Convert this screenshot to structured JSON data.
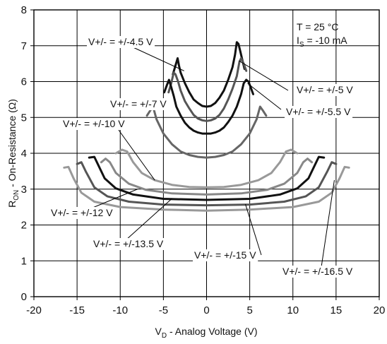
{
  "chart_data": {
    "type": "line",
    "title": "",
    "xlabel": "V",
    "xlabel_sub": "D",
    "xlabel_suffix": " - Analog Voltage (V)",
    "ylabel": "R",
    "ylabel_sub": "ON",
    "ylabel_suffix": " - On-Resistance (Ω)",
    "xlim": [
      -20,
      20
    ],
    "ylim": [
      0,
      8
    ],
    "x_ticks": [
      "-20",
      "-15",
      "-10",
      "-5",
      "0",
      "5",
      "10",
      "15",
      "20"
    ],
    "y_ticks": [
      "0",
      "1",
      "2",
      "3",
      "4",
      "5",
      "6",
      "7",
      "8"
    ],
    "grid": true,
    "conditions": {
      "temp": "T = 25 °C",
      "is_main": "I",
      "is_sub": "S",
      "is_value": " = -10 mA"
    },
    "series": [
      {
        "name": "V+/- = +/-4.5 V",
        "color": "#111111",
        "x": [
          -3.9,
          -3.6,
          -3.35,
          -3.2,
          -3.0,
          -2.5,
          -2.0,
          -1.5,
          -1.0,
          -0.5,
          0,
          0.5,
          1.0,
          1.5,
          2.0,
          2.5,
          3.0,
          3.3,
          3.5,
          3.7,
          3.9,
          4.15,
          4.4
        ],
        "y": [
          6.2,
          6.45,
          6.65,
          6.45,
          6.25,
          5.95,
          5.7,
          5.5,
          5.4,
          5.32,
          5.3,
          5.32,
          5.4,
          5.55,
          5.75,
          6.05,
          6.4,
          6.75,
          7.1,
          7.05,
          6.85,
          6.6,
          6.35
        ]
      },
      {
        "name": "V+/- = +/-5 V",
        "color": "#555555",
        "x": [
          -4.4,
          -4.1,
          -3.8,
          -3.6,
          -3.3,
          -3.0,
          -2.5,
          -2.0,
          -1.5,
          -1.0,
          -0.5,
          0,
          0.5,
          1.0,
          1.5,
          2.0,
          2.5,
          3.0,
          3.5,
          3.8,
          4.0,
          4.3,
          4.6
        ],
        "y": [
          5.7,
          5.95,
          6.25,
          6.2,
          6.0,
          5.75,
          5.45,
          5.25,
          5.07,
          4.97,
          4.92,
          4.9,
          4.92,
          4.97,
          5.07,
          5.25,
          5.5,
          5.8,
          6.15,
          6.55,
          6.65,
          6.5,
          6.3
        ]
      },
      {
        "name": "V+/- = +/-5.5 V",
        "color": "#111111",
        "x": [
          -4.9,
          -4.6,
          -4.35,
          -4.1,
          -3.8,
          -3.5,
          -3.0,
          -2.5,
          -2.0,
          -1.5,
          -1.0,
          -0.5,
          0,
          0.5,
          1.0,
          1.5,
          2.0,
          2.5,
          3.0,
          3.5,
          4.0,
          4.3,
          4.6,
          4.85,
          5.1,
          5.4
        ],
        "y": [
          5.7,
          5.9,
          6.05,
          5.85,
          5.6,
          5.3,
          5.05,
          4.85,
          4.72,
          4.63,
          4.58,
          4.55,
          4.55,
          4.55,
          4.58,
          4.63,
          4.72,
          4.87,
          5.05,
          5.3,
          5.65,
          5.95,
          6.05,
          6.0,
          5.85,
          5.65
        ]
      },
      {
        "name": "V+/- = +/-7 V",
        "color": "#666666",
        "x": [
          -6.9,
          -6.5,
          -6.2,
          -5.8,
          -5.0,
          -4.0,
          -3.0,
          -2.0,
          -1.0,
          0,
          1.0,
          2.0,
          3.0,
          4.0,
          5.0,
          5.8,
          6.2,
          6.5,
          6.9
        ],
        "y": [
          5.05,
          5.2,
          5.3,
          4.95,
          4.55,
          4.25,
          4.05,
          3.95,
          3.9,
          3.88,
          3.9,
          3.95,
          4.05,
          4.25,
          4.55,
          4.95,
          5.3,
          5.2,
          5.05
        ]
      },
      {
        "name": "V+/- = +/-10 V",
        "color": "#999999",
        "x": [
          -10.5,
          -9.8,
          -9.2,
          -8.5,
          -7.5,
          -6.0,
          -4.0,
          -2.0,
          0,
          2.0,
          4.0,
          6.0,
          7.5,
          8.5,
          9.2,
          9.8,
          10.5
        ],
        "y": [
          4.0,
          4.1,
          4.05,
          3.75,
          3.45,
          3.25,
          3.12,
          3.06,
          3.05,
          3.06,
          3.12,
          3.25,
          3.45,
          3.75,
          4.05,
          4.1,
          4.0
        ]
      },
      {
        "name": "V+/- = +/-12 V",
        "color": "#888888",
        "x": [
          -12.2,
          -11.7,
          -11.2,
          -10.5,
          -9.0,
          -7.0,
          -4.0,
          0,
          4.0,
          7.0,
          9.0,
          10.5,
          11.2,
          11.7,
          12.2
        ],
        "y": [
          3.75,
          3.85,
          3.75,
          3.45,
          3.15,
          2.98,
          2.88,
          2.85,
          2.88,
          2.98,
          3.15,
          3.45,
          3.75,
          3.85,
          3.75
        ]
      },
      {
        "name": "V+/- = +/-13.5 V",
        "color": "#111111",
        "x": [
          -13.6,
          -13.0,
          -12.5,
          -11.8,
          -10.5,
          -8.5,
          -5.0,
          0,
          5.0,
          8.5,
          10.5,
          11.8,
          12.5,
          13.0,
          13.6
        ],
        "y": [
          3.88,
          3.9,
          3.65,
          3.3,
          3.02,
          2.85,
          2.73,
          2.7,
          2.73,
          2.85,
          3.02,
          3.3,
          3.65,
          3.9,
          3.88
        ]
      },
      {
        "name": "V+/- = +/-15 V",
        "color": "#555555",
        "x": [
          -15.0,
          -14.5,
          -14.0,
          -13.0,
          -11.5,
          -9.0,
          -5.0,
          0,
          5.0,
          9.0,
          11.5,
          13.0,
          14.0,
          14.5,
          15.0
        ],
        "y": [
          3.7,
          3.75,
          3.5,
          3.05,
          2.8,
          2.65,
          2.57,
          2.55,
          2.57,
          2.65,
          2.8,
          3.05,
          3.5,
          3.75,
          3.7
        ]
      },
      {
        "name": "V+/- = +/-16.5 V",
        "color": "#999999",
        "x": [
          -16.5,
          -16.0,
          -15.4,
          -14.5,
          -13.0,
          -10.0,
          -5.0,
          0,
          5.0,
          10.0,
          13.0,
          14.5,
          15.4,
          16.0,
          16.5
        ],
        "y": [
          3.6,
          3.62,
          3.3,
          2.9,
          2.65,
          2.5,
          2.43,
          2.4,
          2.43,
          2.5,
          2.65,
          2.9,
          3.3,
          3.62,
          3.6
        ]
      }
    ],
    "annotations": [
      {
        "label": "V+/- = +/-4.5 V",
        "at": [
          -2.6,
          6.3
        ]
      },
      {
        "label": "V+/- = +/-5 V",
        "at": [
          3.75,
          6.58
        ]
      },
      {
        "label": "V+/- = +/-5.5 V",
        "at": [
          4.75,
          5.95
        ]
      },
      {
        "label": "V+/- = +/-7 V",
        "at": [
          -6.6,
          5.25
        ]
      },
      {
        "label": "V+/- = +/-10 V",
        "at": [
          -6.0,
          3.25
        ]
      },
      {
        "label": "V+/- = +/-12 V",
        "at": [
          -8.0,
          3.0
        ]
      },
      {
        "label": "V+/- = +/-13.5 V",
        "at": [
          -4.0,
          2.74
        ]
      },
      {
        "label": "V+/- = +/-15 V",
        "at": [
          4.5,
          2.58
        ]
      },
      {
        "label": "V+/- = +/-16.5 V",
        "at": [
          14.8,
          3.25
        ]
      }
    ]
  }
}
